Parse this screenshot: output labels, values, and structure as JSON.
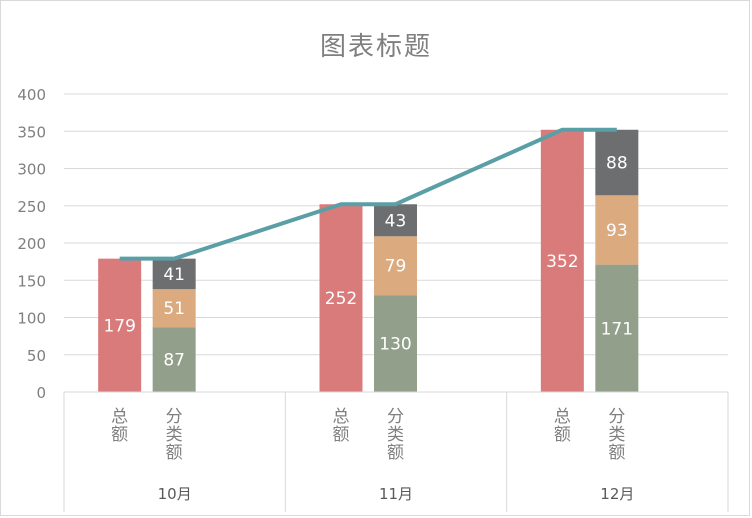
{
  "chart_data": {
    "type": "bar",
    "title": "图表标题",
    "groups": [
      "10月",
      "11月",
      "12月"
    ],
    "subcategories": [
      "总额",
      "分类额"
    ],
    "ylim": [
      0,
      400
    ],
    "yticks": [
      0,
      50,
      100,
      150,
      200,
      250,
      300,
      350,
      400
    ],
    "grid": true,
    "series": [
      {
        "values": [
          179,
          252,
          352
        ],
        "color": "#d97b7a"
      },
      {
        "values": [
          87,
          130,
          171
        ],
        "color": "#929f8a"
      },
      {
        "values": [
          51,
          79,
          93
        ],
        "color": "#dbaa7e"
      },
      {
        "values": [
          41,
          43,
          88
        ],
        "color": "#6d6e70"
      },
      {
        "type": "line",
        "values": [
          179,
          252,
          352
        ],
        "color": "#5a9fa6"
      }
    ]
  }
}
